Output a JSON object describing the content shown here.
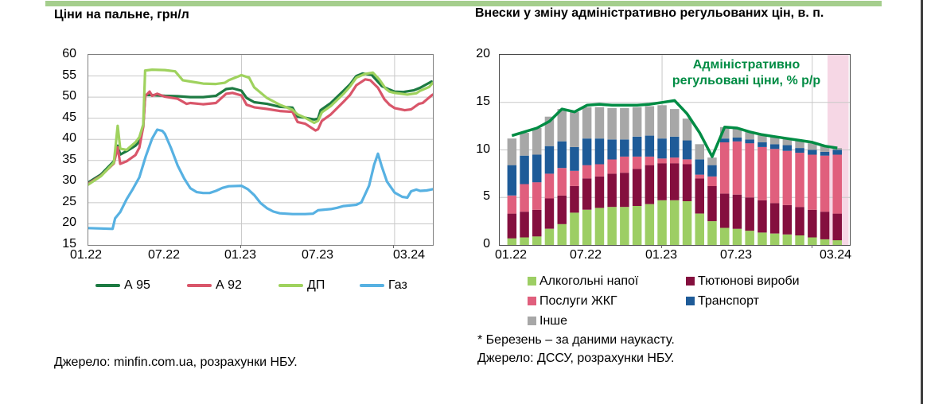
{
  "page": {
    "top_bar_color": "#a5ce8d",
    "edge_rule_color": "#3f3f3f"
  },
  "left_chart": {
    "title": "Ціни на пальне, грн/л",
    "source": "Джерело: minfin.com.ua, розрахунки НБУ."
  },
  "right_chart": {
    "title": "Внески у зміну адміністративно регульованих цін, в. п.",
    "annotation": {
      "line1": "Адміністративно",
      "line2": "регульовані ціни, % р/р",
      "color": "#008c44"
    },
    "footnote": "* Березень – за даними наукасту.",
    "source": "Джерело: ДССУ, розрахунки НБУ."
  },
  "chart_data": [
    {
      "type": "line",
      "title": "Ціни на пальне, грн/л",
      "ylabel": "грн/л",
      "ylim": [
        15,
        60
      ],
      "y_ticks": [
        60,
        55,
        50,
        45,
        40,
        35,
        30,
        25,
        20,
        15
      ],
      "x_ticks": [
        "01.22",
        "07.22",
        "01.23",
        "07.23",
        "03.24"
      ],
      "x_note": "x у точках = місяці від 01.22 (0) до 04.24 (27)",
      "grid": "on",
      "legend_position": "bottom",
      "gridline_color": "#c8c8c8",
      "series": [
        {
          "name": "А 95",
          "color": "#1d7a42",
          "points": [
            [
              0,
              29.8
            ],
            [
              1,
              31.7
            ],
            [
              2,
              34.8
            ],
            [
              2.3,
              38.5
            ],
            [
              2.5,
              36.4
            ],
            [
              3,
              37.2
            ],
            [
              3.7,
              38.5
            ],
            [
              4,
              39.5
            ],
            [
              4.3,
              43
            ],
            [
              4.45,
              50.5
            ],
            [
              5,
              50.5
            ],
            [
              6,
              50.3
            ],
            [
              7,
              50.2
            ],
            [
              8,
              50
            ],
            [
              9,
              50
            ],
            [
              10,
              50.3
            ],
            [
              10.8,
              51.9
            ],
            [
              11.3,
              52.1
            ],
            [
              12,
              51.5
            ],
            [
              12.4,
              49.8
            ],
            [
              13,
              48.8
            ],
            [
              14,
              48.4
            ],
            [
              15,
              47.7
            ],
            [
              16,
              47.5
            ],
            [
              16.4,
              45.4
            ],
            [
              17,
              45.1
            ],
            [
              17.7,
              44.7
            ],
            [
              18,
              44.9
            ],
            [
              18.2,
              46.9
            ],
            [
              19,
              48.6
            ],
            [
              20,
              51.5
            ],
            [
              20.5,
              53
            ],
            [
              21,
              55
            ],
            [
              21.5,
              55.6
            ],
            [
              22.2,
              55.3
            ],
            [
              23,
              52.6
            ],
            [
              23.5,
              51.9
            ],
            [
              24,
              51.3
            ],
            [
              24.7,
              51.2
            ],
            [
              25.5,
              51.6
            ],
            [
              26,
              52.2
            ],
            [
              26.9,
              53.7
            ]
          ]
        },
        {
          "name": "А 92",
          "color": "#d9566a",
          "points": [
            [
              0,
              29.5
            ],
            [
              1,
              31.4
            ],
            [
              2,
              34.3
            ],
            [
              2.3,
              38.1
            ],
            [
              2.5,
              34.2
            ],
            [
              3,
              34.8
            ],
            [
              3.7,
              36.3
            ],
            [
              4,
              38
            ],
            [
              4.3,
              43
            ],
            [
              4.45,
              50.2
            ],
            [
              4.8,
              51.3
            ],
            [
              5,
              50.3
            ],
            [
              5.4,
              50.8
            ],
            [
              6,
              50.1
            ],
            [
              7,
              49.6
            ],
            [
              7.7,
              48.4
            ],
            [
              8,
              48.6
            ],
            [
              9,
              48.3
            ],
            [
              10,
              48.6
            ],
            [
              10.8,
              50.8
            ],
            [
              11.3,
              51
            ],
            [
              12,
              50.4
            ],
            [
              12.4,
              48.2
            ],
            [
              13,
              47.6
            ],
            [
              14,
              47.2
            ],
            [
              15,
              46.7
            ],
            [
              16,
              46.5
            ],
            [
              16.4,
              44.1
            ],
            [
              17,
              43.7
            ],
            [
              17.8,
              42.1
            ],
            [
              18,
              42.4
            ],
            [
              18.3,
              44.4
            ],
            [
              19,
              45.9
            ],
            [
              20,
              48.9
            ],
            [
              20.5,
              50.5
            ],
            [
              21,
              52.8
            ],
            [
              21.7,
              54.2
            ],
            [
              22.1,
              54
            ],
            [
              22.7,
              52.2
            ],
            [
              23.2,
              49.5
            ],
            [
              23.6,
              48.2
            ],
            [
              24,
              47.4
            ],
            [
              24.8,
              46.9
            ],
            [
              25.3,
              47.1
            ],
            [
              25.9,
              48.4
            ],
            [
              26.2,
              48.6
            ],
            [
              26.9,
              50.4
            ],
            [
              27,
              50.6
            ]
          ]
        },
        {
          "name": "ДП",
          "color": "#9fd25e",
          "points": [
            [
              0,
              29.3
            ],
            [
              1,
              31.3
            ],
            [
              2,
              34.5
            ],
            [
              2.3,
              43.2
            ],
            [
              2.5,
              37.8
            ],
            [
              3,
              37.5
            ],
            [
              3.7,
              39.3
            ],
            [
              4,
              40.5
            ],
            [
              4.3,
              43.5
            ],
            [
              4.45,
              56.3
            ],
            [
              5,
              56.5
            ],
            [
              6,
              56.4
            ],
            [
              6.8,
              56.1
            ],
            [
              7.4,
              54
            ],
            [
              8,
              53.7
            ],
            [
              9,
              53.2
            ],
            [
              10,
              53.1
            ],
            [
              10.7,
              53.4
            ],
            [
              11,
              54
            ],
            [
              12,
              55.2
            ],
            [
              12.6,
              54.6
            ],
            [
              13,
              52.3
            ],
            [
              14,
              49.8
            ],
            [
              15,
              48.2
            ],
            [
              16,
              47
            ],
            [
              16.4,
              45.9
            ],
            [
              17,
              45.1
            ],
            [
              17.7,
              43.9
            ],
            [
              18,
              44.4
            ],
            [
              18.3,
              46.4
            ],
            [
              19,
              47.9
            ],
            [
              20,
              50.8
            ],
            [
              20.5,
              52.5
            ],
            [
              21,
              54.6
            ],
            [
              21.7,
              55.5
            ],
            [
              22.3,
              55.8
            ],
            [
              22.8,
              54.2
            ],
            [
              23.3,
              52
            ],
            [
              23.6,
              51.3
            ],
            [
              24,
              51
            ],
            [
              25,
              50.6
            ],
            [
              25.7,
              50.9
            ],
            [
              26,
              51.5
            ],
            [
              26.7,
              52.4
            ],
            [
              27,
              53.4
            ]
          ]
        },
        {
          "name": "Газ",
          "color": "#57b1e2",
          "points": [
            [
              0,
              19
            ],
            [
              1,
              18.9
            ],
            [
              1.9,
              18.8
            ],
            [
              2.1,
              21.3
            ],
            [
              2.5,
              22.8
            ],
            [
              3,
              25.8
            ],
            [
              3.5,
              28.3
            ],
            [
              4,
              31
            ],
            [
              4.5,
              36
            ],
            [
              5,
              40.2
            ],
            [
              5.4,
              42.3
            ],
            [
              5.8,
              42
            ],
            [
              6,
              41.3
            ],
            [
              6.5,
              37.8
            ],
            [
              7,
              33.8
            ],
            [
              7.5,
              30.8
            ],
            [
              8,
              28.4
            ],
            [
              8.5,
              27.5
            ],
            [
              9,
              27.3
            ],
            [
              9.5,
              27.3
            ],
            [
              10,
              27.8
            ],
            [
              10.5,
              28.5
            ],
            [
              11,
              28.9
            ],
            [
              12,
              29
            ],
            [
              12.5,
              28.2
            ],
            [
              13,
              26.8
            ],
            [
              13.5,
              24.9
            ],
            [
              14,
              23.7
            ],
            [
              14.5,
              22.9
            ],
            [
              15,
              22.5
            ],
            [
              16,
              22.3
            ],
            [
              17,
              22.3
            ],
            [
              17.6,
              22.4
            ],
            [
              18,
              23.2
            ],
            [
              19,
              23.5
            ],
            [
              19.5,
              23.8
            ],
            [
              20,
              24.2
            ],
            [
              21,
              24.5
            ],
            [
              21.4,
              25.1
            ],
            [
              22,
              29
            ],
            [
              22.4,
              34
            ],
            [
              22.7,
              36.6
            ],
            [
              23,
              33.5
            ],
            [
              23.4,
              30
            ],
            [
              24,
              27.4
            ],
            [
              24.6,
              26.4
            ],
            [
              25,
              26.2
            ],
            [
              25.3,
              27.7
            ],
            [
              25.7,
              28.1
            ],
            [
              26,
              27.8
            ],
            [
              26.5,
              27.9
            ],
            [
              27,
              28.2
            ]
          ]
        }
      ]
    },
    {
      "type": "stacked_bar_with_line",
      "title": "Внески у зміну адміністративно регульованих цін, в. п.",
      "ylim": [
        0,
        20
      ],
      "y_ticks": [
        20,
        15,
        10,
        5,
        0
      ],
      "x_ticks": [
        "01.22",
        "07.22",
        "01.23",
        "07.23",
        "03.24"
      ],
      "grid": "on",
      "legend_position": "bottom",
      "gridline_color": "#c8c8c8",
      "categories": [
        "01.22",
        "02.22",
        "03.22",
        "04.22",
        "05.22",
        "06.22",
        "07.22",
        "08.22",
        "09.22",
        "10.22",
        "11.22",
        "12.22",
        "01.23",
        "02.23",
        "03.23",
        "04.23",
        "05.23",
        "06.23",
        "07.23",
        "08.23",
        "09.23",
        "10.23",
        "11.23",
        "12.23",
        "01.24",
        "02.24",
        "03.24"
      ],
      "series": [
        {
          "name": "Алкогольні напої",
          "color": "#9dce64",
          "values": [
            0.7,
            0.8,
            0.9,
            1.7,
            2.2,
            3.4,
            3.7,
            3.9,
            4.0,
            4.0,
            4.1,
            4.3,
            4.7,
            4.7,
            4.6,
            3.3,
            2.5,
            1.8,
            1.7,
            1.5,
            1.3,
            1.2,
            1.1,
            1.0,
            0.8,
            0.6,
            0.5
          ]
        },
        {
          "name": "Тютюнові вироби",
          "color": "#840f3e",
          "values": [
            2.6,
            2.7,
            2.8,
            3.2,
            3.0,
            2.8,
            3.3,
            3.3,
            3.5,
            3.6,
            3.9,
            4.1,
            3.9,
            3.9,
            3.9,
            3.7,
            3.7,
            3.6,
            3.6,
            3.5,
            3.4,
            3.2,
            3.1,
            3.0,
            2.9,
            2.9,
            2.8
          ]
        },
        {
          "name": "Послуги ЖКГ",
          "color": "#e05f7d",
          "values": [
            1.9,
            2.9,
            2.9,
            2.6,
            2.9,
            1.6,
            1.4,
            1.3,
            1.5,
            1.7,
            1.3,
            0.9,
            0.5,
            0.6,
            0.5,
            0.4,
            1.0,
            5.4,
            5.6,
            5.7,
            5.6,
            5.7,
            5.7,
            5.7,
            5.8,
            5.9,
            6.2
          ]
        },
        {
          "name": "Транспорт",
          "color": "#1e5b98",
          "values": [
            3.2,
            3.0,
            2.9,
            2.9,
            2.8,
            2.5,
            2.8,
            2.7,
            2.1,
            1.8,
            2.1,
            2.2,
            2.1,
            2.2,
            2.0,
            1.6,
            1.2,
            0.4,
            0.4,
            0.4,
            0.5,
            0.5,
            0.6,
            0.5,
            0.5,
            0.4,
            0.5
          ]
        },
        {
          "name": "Інше",
          "color": "#a7a7a7",
          "values": [
            2.8,
            2.4,
            2.8,
            3.1,
            3.4,
            3.7,
            3.3,
            3.3,
            3.3,
            3.3,
            3.1,
            3.1,
            3.5,
            2.9,
            2.3,
            1.6,
            0.8,
            1.2,
            0.9,
            0.8,
            0.8,
            0.8,
            0.7,
            0.8,
            0.7,
            0.6,
            0.2
          ]
        }
      ],
      "line": {
        "name": "Адміністративно регульовані ціни, % р/р",
        "color": "#008c44",
        "values": [
          11.5,
          11.9,
          12.3,
          13.0,
          14.3,
          14.0,
          14.7,
          14.8,
          14.7,
          14.7,
          14.7,
          14.8,
          15.0,
          15.2,
          13.8,
          11.8,
          9.3,
          12.4,
          12.3,
          11.9,
          11.6,
          11.4,
          11.2,
          11.0,
          10.8,
          10.4,
          10.2
        ]
      },
      "highlight_band": {
        "category": "03.24",
        "color": "#f6d7e5"
      }
    }
  ]
}
